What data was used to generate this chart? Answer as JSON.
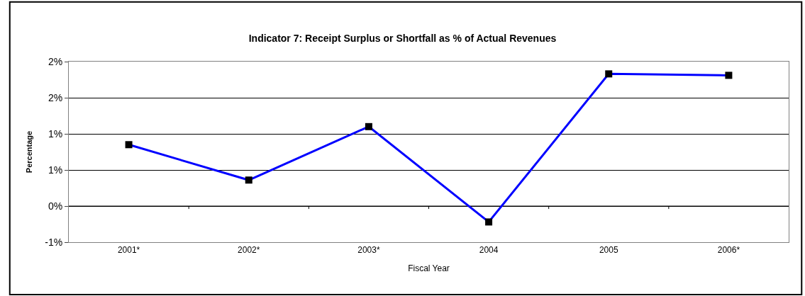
{
  "chart_data": {
    "type": "line",
    "title": "Indicator 7: Receipt Surplus or Shortfall as % of Actual Revenues",
    "xlabel": "Fiscal Year",
    "ylabel": "Percentage",
    "categories": [
      "2001*",
      "2002*",
      "2003*",
      "2004",
      "2005",
      "2006*"
    ],
    "series": [
      {
        "color": "#0000ff",
        "values": [
          0.85,
          0.36,
          1.1,
          -0.22,
          1.83,
          1.81
        ]
      }
    ],
    "ylim": [
      -0.5,
      2.0
    ],
    "yticks": [
      {
        "value": -0.5,
        "label": "-1%"
      },
      {
        "value": 0,
        "label": "0%"
      },
      {
        "value": 0.5,
        "label": "1%"
      },
      {
        "value": 1.0,
        "label": "1%"
      },
      {
        "value": 1.5,
        "label": "2%"
      },
      {
        "value": 2.0,
        "label": "2%"
      }
    ],
    "grid": "y",
    "marker": "square",
    "line_style": "solid",
    "legend": false
  }
}
